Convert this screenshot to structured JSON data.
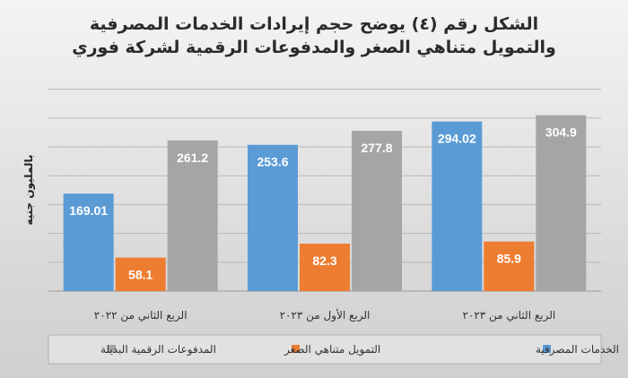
{
  "chart_data": {
    "type": "bar",
    "title_lines": [
      "الشكل رقم (٤) يوضح حجم إيرادات الخدمات المصرفية",
      "والتمويل متناهي الصغر والمدفوعات الرقمية لشركة فوري"
    ],
    "ylabel": "بالمليون جنيه",
    "xlabel": "",
    "categories": [
      "الربع الثاني من ٢٠٢٢",
      "الربع الأول من ٢٠٢٣",
      "الربع الثاني من ٢٠٢٣"
    ],
    "series": [
      {
        "name": "الخدمات المصرفية",
        "color": "#5b9bd5",
        "values": [
          169.01,
          253.6,
          294.02
        ],
        "labels": [
          "169.01",
          "253.6",
          "294.02"
        ]
      },
      {
        "name": "التمويل متناهي الصغر",
        "color": "#ed7d31",
        "values": [
          58.1,
          82.3,
          85.9
        ],
        "labels": [
          "58.1",
          "82.3",
          "85.9"
        ]
      },
      {
        "name": "المدفوعات الرقمية البديلة",
        "color": "#a5a5a5",
        "values": [
          261.2,
          277.8,
          304.9
        ],
        "labels": [
          "261.2",
          "277.8",
          "304.9"
        ]
      }
    ],
    "ylim": [
      0,
      350
    ],
    "grid": true,
    "legend_position": "bottom"
  }
}
